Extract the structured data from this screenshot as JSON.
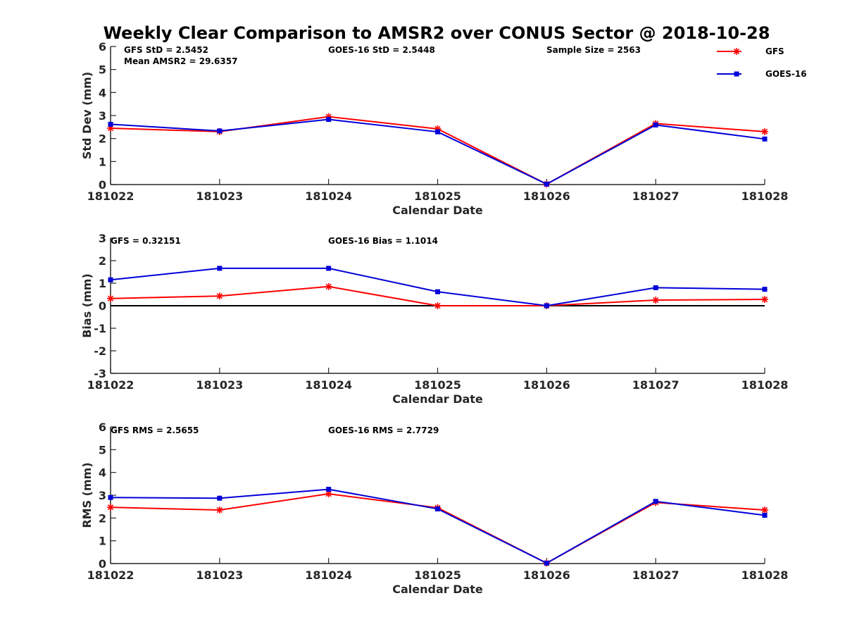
{
  "figure_title": "Weekly Clear Comparison to AMSR2 over CONUS Sector @ 2018-10-28",
  "colors": {
    "GFS": "#ff0000",
    "GOES-16": "#0000d8"
  },
  "legend": {
    "placement": "top-right",
    "entries": [
      {
        "name": "GFS",
        "marker": "asterisk"
      },
      {
        "name": "GOES-16",
        "marker": "square"
      }
    ]
  },
  "chart_data": [
    {
      "type": "line",
      "categories": [
        "181022",
        "181023",
        "181024",
        "181025",
        "181026",
        "181027",
        "181028"
      ],
      "xlabel": "Calendar Date",
      "ylabel": "Std Dev (mm)",
      "ylim": [
        0,
        6
      ],
      "yticks": [
        0,
        1,
        2,
        3,
        4,
        5,
        6
      ],
      "zero_line": false,
      "annotations": [
        {
          "text": "GFS StD = 2.5452"
        },
        {
          "text": "Mean AMSR2 = 29.6357"
        },
        {
          "text": "GOES-16 StD = 2.5448"
        },
        {
          "text": "Sample Size = 2563"
        }
      ],
      "series": [
        {
          "name": "GFS",
          "values": [
            2.45,
            2.3,
            2.95,
            2.42,
            0.02,
            2.65,
            2.3
          ]
        },
        {
          "name": "GOES-16",
          "values": [
            2.62,
            2.33,
            2.83,
            2.29,
            0.02,
            2.59,
            1.98
          ]
        }
      ]
    },
    {
      "type": "line",
      "categories": [
        "181022",
        "181023",
        "181024",
        "181025",
        "181026",
        "181027",
        "181028"
      ],
      "xlabel": "Calendar Date",
      "ylabel": "Bias (mm)",
      "ylim": [
        -3,
        3
      ],
      "yticks": [
        -3,
        -2,
        -1,
        0,
        1,
        2,
        3
      ],
      "zero_line": true,
      "annotations": [
        {
          "text": "GFS = 0.32151"
        },
        {
          "text": "GOES-16 Bias  = 1.1014"
        }
      ],
      "series": [
        {
          "name": "GFS",
          "values": [
            0.32,
            0.43,
            0.85,
            0.0,
            0.0,
            0.25,
            0.28
          ]
        },
        {
          "name": "GOES-16",
          "values": [
            1.15,
            1.66,
            1.66,
            0.62,
            0.0,
            0.8,
            0.73
          ]
        }
      ]
    },
    {
      "type": "line",
      "categories": [
        "181022",
        "181023",
        "181024",
        "181025",
        "181026",
        "181027",
        "181028"
      ],
      "xlabel": "Calendar Date",
      "ylabel": "RMS (mm)",
      "ylim": [
        0,
        6
      ],
      "yticks": [
        0,
        1,
        2,
        3,
        4,
        5,
        6
      ],
      "zero_line": false,
      "annotations": [
        {
          "text": "GFS RMS = 2.5655"
        },
        {
          "text": "GOES-16 RMS = 2.7729"
        }
      ],
      "series": [
        {
          "name": "GFS",
          "values": [
            2.47,
            2.35,
            3.06,
            2.45,
            0.02,
            2.68,
            2.35
          ]
        },
        {
          "name": "GOES-16",
          "values": [
            2.9,
            2.87,
            3.26,
            2.4,
            0.02,
            2.73,
            2.12
          ]
        }
      ]
    }
  ]
}
